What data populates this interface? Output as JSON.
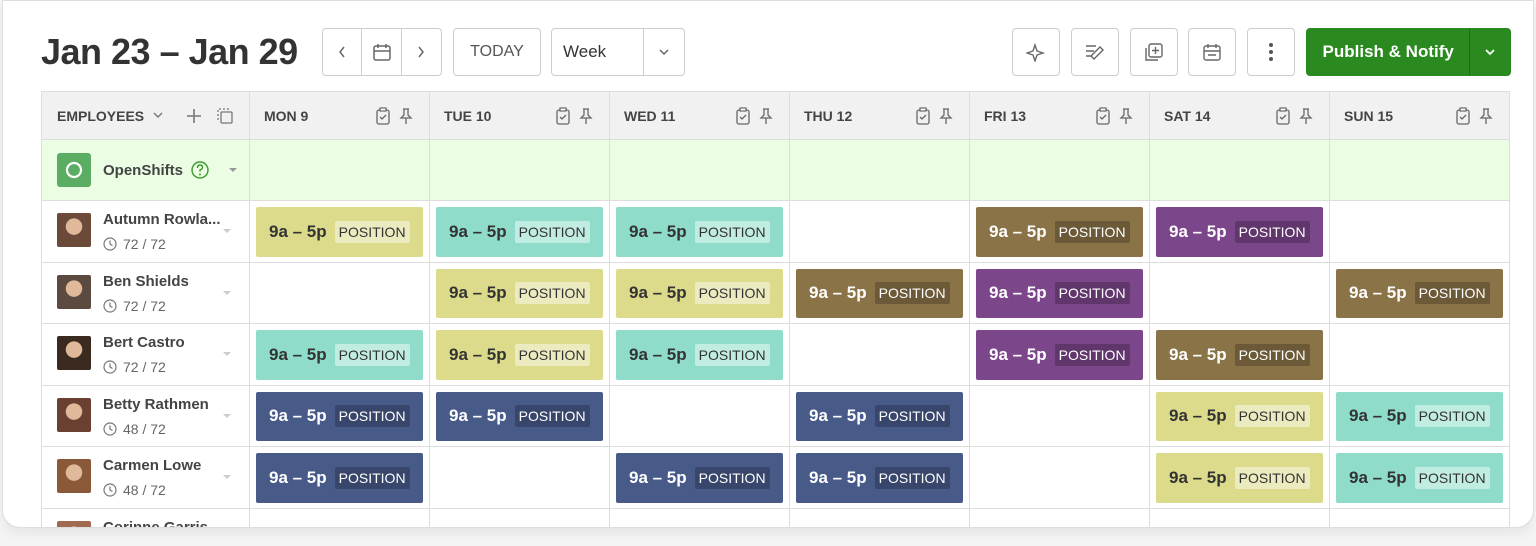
{
  "header": {
    "title": "Jan 23 – Jan 29",
    "today": "TODAY",
    "view": "Week",
    "publish": "Publish & Notify"
  },
  "grid": {
    "employees_label": "EMPLOYEES",
    "days": [
      "MON 9",
      "TUE 10",
      "WED 11",
      "THU 12",
      "FRI 13",
      "SAT 14",
      "SUN 15"
    ],
    "open_shifts": "OpenShifts",
    "employees": [
      {
        "name": "Autumn Rowla...",
        "hours": "72 / 72",
        "shifts": [
          {
            "time": "9a – 5p",
            "position": "POSITION",
            "color": "#dcdb8c"
          },
          {
            "time": "9a – 5p",
            "position": "POSITION",
            "color": "#8fdccb"
          },
          {
            "time": "9a – 5p",
            "position": "POSITION",
            "color": "#8fdccb"
          },
          null,
          {
            "time": "9a – 5p",
            "position": "POSITION",
            "color": "#8b7348"
          },
          {
            "time": "9a – 5p",
            "position": "POSITION",
            "color": "#7c468b"
          },
          null
        ]
      },
      {
        "name": "Ben Shields",
        "hours": "72 / 72",
        "shifts": [
          null,
          {
            "time": "9a – 5p",
            "position": "POSITION",
            "color": "#dcdb8c"
          },
          {
            "time": "9a – 5p",
            "position": "POSITION",
            "color": "#dcdb8c"
          },
          {
            "time": "9a – 5p",
            "position": "POSITION",
            "color": "#8b7348"
          },
          {
            "time": "9a – 5p",
            "position": "POSITION",
            "color": "#7c468b"
          },
          null,
          {
            "time": "9a – 5p",
            "position": "POSITION",
            "color": "#8b7348"
          }
        ]
      },
      {
        "name": "Bert Castro",
        "hours": "72 / 72",
        "shifts": [
          {
            "time": "9a – 5p",
            "position": "POSITION",
            "color": "#8fdccb"
          },
          {
            "time": "9a – 5p",
            "position": "POSITION",
            "color": "#dcdb8c"
          },
          {
            "time": "9a – 5p",
            "position": "POSITION",
            "color": "#8fdccb"
          },
          null,
          {
            "time": "9a – 5p",
            "position": "POSITION",
            "color": "#7c468b"
          },
          {
            "time": "9a – 5p",
            "position": "POSITION",
            "color": "#8b7348"
          },
          null
        ]
      },
      {
        "name": "Betty Rathmen",
        "hours": "48 / 72",
        "shifts": [
          {
            "time": "9a – 5p",
            "position": "POSITION",
            "color": "#475a88"
          },
          {
            "time": "9a – 5p",
            "position": "POSITION",
            "color": "#475a88"
          },
          null,
          {
            "time": "9a – 5p",
            "position": "POSITION",
            "color": "#475a88"
          },
          null,
          {
            "time": "9a – 5p",
            "position": "POSITION",
            "color": "#dcdb8c"
          },
          {
            "time": "9a – 5p",
            "position": "POSITION",
            "color": "#8fdccb"
          }
        ]
      },
      {
        "name": "Carmen Lowe",
        "hours": "48 / 72",
        "shifts": [
          {
            "time": "9a – 5p",
            "position": "POSITION",
            "color": "#475a88"
          },
          null,
          {
            "time": "9a – 5p",
            "position": "POSITION",
            "color": "#475a88"
          },
          {
            "time": "9a – 5p",
            "position": "POSITION",
            "color": "#475a88"
          },
          null,
          {
            "time": "9a – 5p",
            "position": "POSITION",
            "color": "#dcdb8c"
          },
          {
            "time": "9a – 5p",
            "position": "POSITION",
            "color": "#8fdccb"
          }
        ]
      },
      {
        "name": "Corinne Garris",
        "hours": "",
        "shifts": [
          null,
          null,
          null,
          null,
          null,
          null,
          null
        ]
      }
    ]
  }
}
